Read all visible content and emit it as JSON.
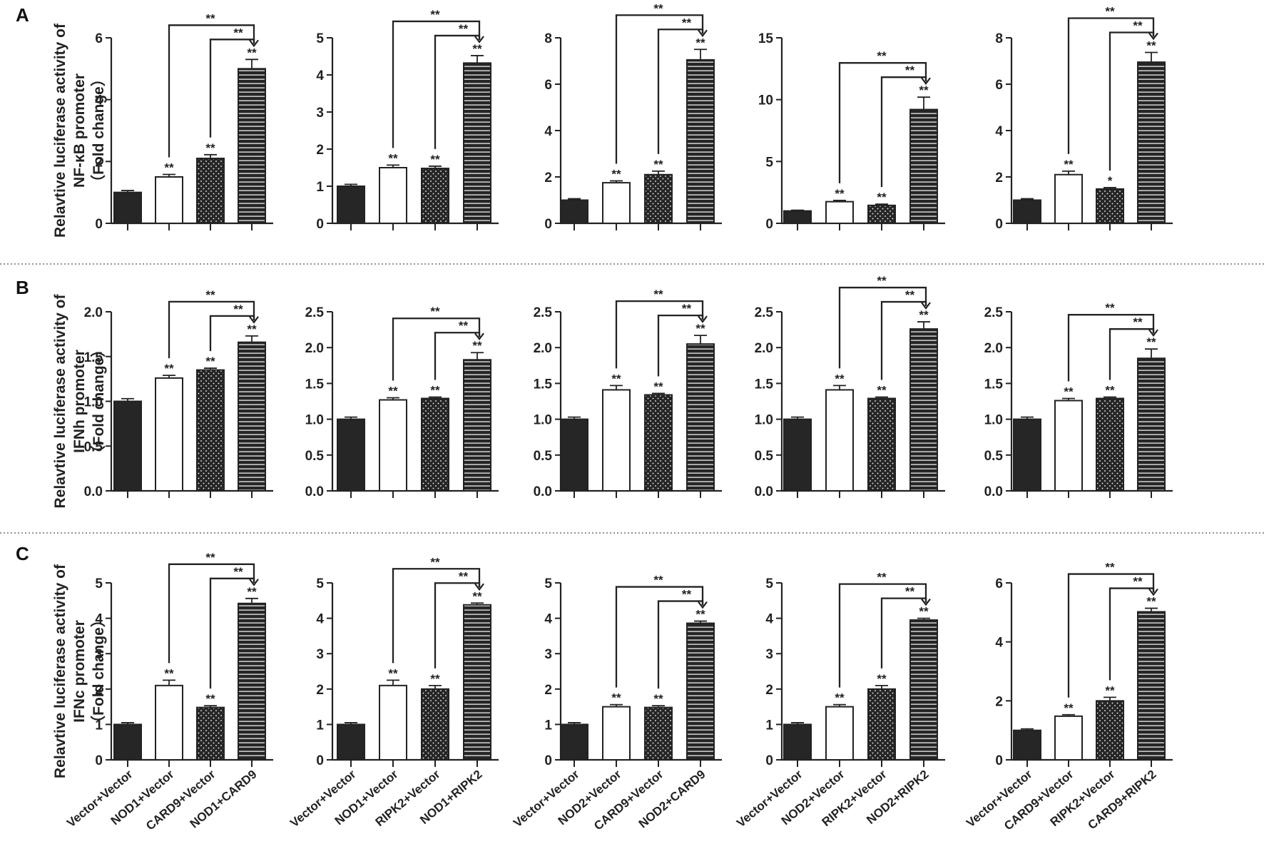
{
  "colors": {
    "ink": "#222222",
    "bar_dark": "#262626",
    "bar_white": "#ffffff",
    "stripe": "#ffffff",
    "dot": "#ffffff"
  },
  "categories_by_column": [
    [
      "Vector+Vector",
      "NOD1+Vector",
      "CARD9+Vector",
      "NOD1+CARD9"
    ],
    [
      "Vector+Vector",
      "NOD1+Vector",
      "RIPK2+Vector",
      "NOD1+RIPK2"
    ],
    [
      "Vector+Vector",
      "NOD2+Vector",
      "CARD9+Vector",
      "NOD2+CARD9"
    ],
    [
      "Vector+Vector",
      "NOD2+Vector",
      "RIPK2+Vector",
      "NOD2+RIPK2"
    ],
    [
      "Vector+Vector",
      "CARD9+Vector",
      "RIPK2+Vector",
      "CARD9+RIPK2"
    ]
  ],
  "bar_styles": [
    "solid-dark",
    "open-white",
    "dotted-dark",
    "striped-dark"
  ],
  "chart_data": [
    {
      "panel": "A",
      "type": "bar",
      "ylabel": [
        "Relavtive luciferase activity of",
        "NF-κB promoter",
        "（Fold change）"
      ],
      "charts": [
        {
          "ylim": [
            0,
            6
          ],
          "yticks": [
            "0",
            "2",
            "4",
            "6"
          ],
          "tickvals": [
            0,
            2,
            4,
            6
          ],
          "values": [
            1.0,
            1.5,
            2.1,
            5.0
          ],
          "errors": [
            0.06,
            0.08,
            0.12,
            0.3
          ],
          "sig": [
            "",
            "**",
            "**",
            "**"
          ],
          "brackets": [
            {
              "from": 1,
              "label": "**"
            },
            {
              "from": 2,
              "label": "**"
            }
          ]
        },
        {
          "ylim": [
            0,
            5
          ],
          "yticks": [
            "0",
            "1",
            "2",
            "3",
            "4",
            "5"
          ],
          "tickvals": [
            0,
            1,
            2,
            3,
            4,
            5
          ],
          "values": [
            1.0,
            1.5,
            1.48,
            4.32
          ],
          "errors": [
            0.05,
            0.07,
            0.06,
            0.2
          ],
          "sig": [
            "",
            "**",
            "**",
            "**"
          ],
          "brackets": [
            {
              "from": 1,
              "label": "**"
            },
            {
              "from": 2,
              "label": "**"
            }
          ]
        },
        {
          "ylim": [
            0,
            8
          ],
          "yticks": [
            "0",
            "2",
            "4",
            "6",
            "8"
          ],
          "tickvals": [
            0,
            2,
            4,
            6,
            8
          ],
          "values": [
            1.0,
            1.75,
            2.1,
            7.05
          ],
          "errors": [
            0.06,
            0.08,
            0.15,
            0.45
          ],
          "sig": [
            "",
            "**",
            "**",
            "**"
          ],
          "brackets": [
            {
              "from": 1,
              "label": "**"
            },
            {
              "from": 2,
              "label": "**"
            }
          ]
        },
        {
          "ylim": [
            0,
            15
          ],
          "yticks": [
            "0",
            "5",
            "10",
            "15"
          ],
          "tickvals": [
            0,
            5,
            10,
            15
          ],
          "values": [
            1.0,
            1.75,
            1.45,
            9.2
          ],
          "errors": [
            0.06,
            0.1,
            0.1,
            1.0
          ],
          "sig": [
            "",
            "**",
            "**",
            "**"
          ],
          "brackets": [
            {
              "from": 1,
              "label": "**"
            },
            {
              "from": 2,
              "label": "**"
            }
          ]
        },
        {
          "ylim": [
            0,
            8
          ],
          "yticks": [
            "0",
            "2",
            "4",
            "6",
            "8"
          ],
          "tickvals": [
            0,
            2,
            4,
            6,
            8
          ],
          "values": [
            1.0,
            2.1,
            1.48,
            6.95
          ],
          "errors": [
            0.06,
            0.15,
            0.06,
            0.42
          ],
          "sig": [
            "",
            "**",
            "*",
            "**"
          ],
          "brackets": [
            {
              "from": 1,
              "label": "**"
            },
            {
              "from": 2,
              "label": "**"
            }
          ]
        }
      ]
    },
    {
      "panel": "B",
      "type": "bar",
      "ylabel": [
        "Relavtive luciferase activity of",
        "IFNh promoter",
        "（Fold change）"
      ],
      "charts": [
        {
          "ylim": [
            0,
            2.0
          ],
          "yticks": [
            "0.0",
            "0.5",
            "1.0",
            "1.5",
            "2.0"
          ],
          "tickvals": [
            0,
            0.5,
            1.0,
            1.5,
            2.0
          ],
          "values": [
            1.0,
            1.26,
            1.35,
            1.66
          ],
          "errors": [
            0.03,
            0.03,
            0.02,
            0.07
          ],
          "sig": [
            "",
            "**",
            "**",
            "**"
          ],
          "brackets": [
            {
              "from": 1,
              "label": "**"
            },
            {
              "from": 2,
              "label": "**"
            }
          ]
        },
        {
          "ylim": [
            0,
            2.5
          ],
          "yticks": [
            "0.0",
            "0.5",
            "1.0",
            "1.5",
            "2.0",
            "2.5"
          ],
          "tickvals": [
            0,
            0.5,
            1.0,
            1.5,
            2.0,
            2.5
          ],
          "values": [
            1.0,
            1.27,
            1.29,
            1.83
          ],
          "errors": [
            0.03,
            0.03,
            0.02,
            0.1
          ],
          "sig": [
            "",
            "**",
            "**",
            "**"
          ],
          "brackets": [
            {
              "from": 1,
              "label": "**"
            },
            {
              "from": 2,
              "label": "**"
            }
          ]
        },
        {
          "ylim": [
            0,
            2.5
          ],
          "yticks": [
            "0.0",
            "0.5",
            "1.0",
            "1.5",
            "2.0",
            "2.5"
          ],
          "tickvals": [
            0,
            0.5,
            1.0,
            1.5,
            2.0,
            2.5
          ],
          "values": [
            1.0,
            1.41,
            1.34,
            2.05
          ],
          "errors": [
            0.03,
            0.06,
            0.02,
            0.12
          ],
          "sig": [
            "",
            "**",
            "**",
            "**"
          ],
          "brackets": [
            {
              "from": 1,
              "label": "**"
            },
            {
              "from": 2,
              "label": "**"
            }
          ]
        },
        {
          "ylim": [
            0,
            2.5
          ],
          "yticks": [
            "0.0",
            "0.5",
            "1.0",
            "1.5",
            "2.0",
            "2.5"
          ],
          "tickvals": [
            0,
            0.5,
            1.0,
            1.5,
            2.0,
            2.5
          ],
          "values": [
            1.0,
            1.41,
            1.29,
            2.26
          ],
          "errors": [
            0.03,
            0.06,
            0.02,
            0.1
          ],
          "sig": [
            "",
            "**",
            "**",
            "**"
          ],
          "brackets": [
            {
              "from": 1,
              "label": "**"
            },
            {
              "from": 2,
              "label": "**"
            }
          ]
        },
        {
          "ylim": [
            0,
            2.5
          ],
          "yticks": [
            "0.0",
            "0.5",
            "1.0",
            "1.5",
            "2.0",
            "2.5"
          ],
          "tickvals": [
            0,
            0.5,
            1.0,
            1.5,
            2.0,
            2.5
          ],
          "values": [
            1.0,
            1.26,
            1.29,
            1.85
          ],
          "errors": [
            0.03,
            0.03,
            0.02,
            0.13
          ],
          "sig": [
            "",
            "**",
            "**",
            "**"
          ],
          "brackets": [
            {
              "from": 1,
              "label": "**"
            },
            {
              "from": 2,
              "label": "**"
            }
          ]
        }
      ]
    },
    {
      "panel": "C",
      "type": "bar",
      "ylabel": [
        "Relavtive luciferase activity of",
        "IFNc promoter",
        "（Fold change）"
      ],
      "charts": [
        {
          "ylim": [
            0,
            5
          ],
          "yticks": [
            "0",
            "1",
            "2",
            "3",
            "4",
            "5"
          ],
          "tickvals": [
            0,
            1,
            2,
            3,
            4,
            5
          ],
          "values": [
            1.0,
            2.1,
            1.48,
            4.42
          ],
          "errors": [
            0.05,
            0.15,
            0.05,
            0.14
          ],
          "sig": [
            "",
            "**",
            "**",
            "**"
          ],
          "brackets": [
            {
              "from": 1,
              "label": "**"
            },
            {
              "from": 2,
              "label": "**"
            }
          ]
        },
        {
          "ylim": [
            0,
            5
          ],
          "yticks": [
            "0",
            "1",
            "2",
            "3",
            "4",
            "5"
          ],
          "tickvals": [
            0,
            1,
            2,
            3,
            4,
            5
          ],
          "values": [
            1.0,
            2.1,
            2.0,
            4.38
          ],
          "errors": [
            0.05,
            0.15,
            0.1,
            0.05
          ],
          "sig": [
            "",
            "**",
            "**",
            "**"
          ],
          "brackets": [
            {
              "from": 1,
              "label": "**"
            },
            {
              "from": 2,
              "label": "**"
            }
          ]
        },
        {
          "ylim": [
            0,
            5
          ],
          "yticks": [
            "0",
            "1",
            "2",
            "3",
            "4",
            "5"
          ],
          "tickvals": [
            0,
            1,
            2,
            3,
            4,
            5
          ],
          "values": [
            1.0,
            1.5,
            1.48,
            3.86
          ],
          "errors": [
            0.05,
            0.06,
            0.05,
            0.06
          ],
          "sig": [
            "",
            "**",
            "**",
            "**"
          ],
          "brackets": [
            {
              "from": 1,
              "label": "**"
            },
            {
              "from": 2,
              "label": "**"
            }
          ]
        },
        {
          "ylim": [
            0,
            5
          ],
          "yticks": [
            "0",
            "1",
            "2",
            "3",
            "4",
            "5"
          ],
          "tickvals": [
            0,
            1,
            2,
            3,
            4,
            5
          ],
          "values": [
            1.0,
            1.5,
            2.0,
            3.95
          ],
          "errors": [
            0.05,
            0.06,
            0.1,
            0.05
          ],
          "sig": [
            "",
            "**",
            "**",
            "**"
          ],
          "brackets": [
            {
              "from": 1,
              "label": "**"
            },
            {
              "from": 2,
              "label": "**"
            }
          ]
        },
        {
          "ylim": [
            0,
            6
          ],
          "yticks": [
            "0",
            "2",
            "4",
            "6"
          ],
          "tickvals": [
            0,
            2,
            4,
            6
          ],
          "values": [
            1.0,
            1.48,
            2.0,
            5.02
          ],
          "errors": [
            0.05,
            0.05,
            0.12,
            0.12
          ],
          "sig": [
            "",
            "**",
            "**",
            "**"
          ],
          "brackets": [
            {
              "from": 1,
              "label": "**"
            },
            {
              "from": 2,
              "label": "**"
            }
          ]
        }
      ]
    }
  ]
}
